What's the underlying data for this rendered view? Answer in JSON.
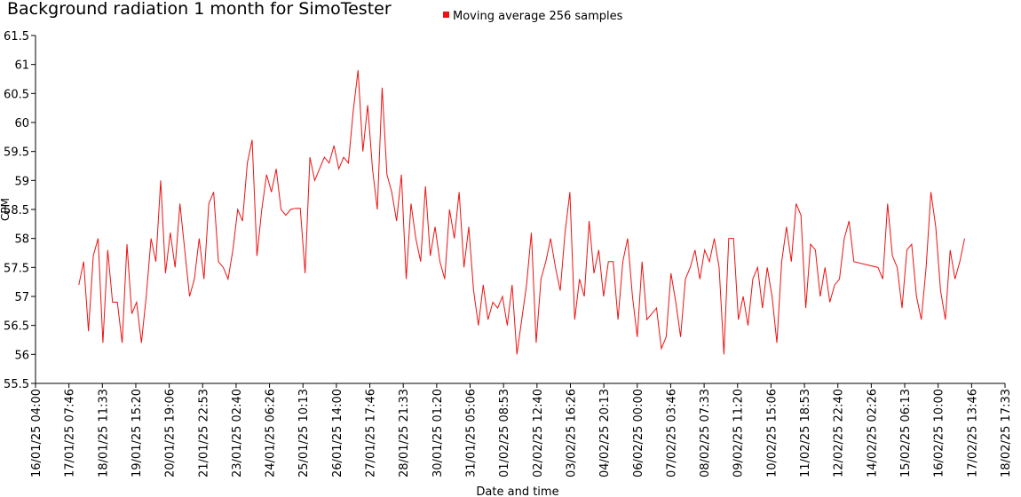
{
  "chart_data": {
    "type": "line",
    "title": "Background radiation 1 month for SimoTester",
    "xlabel": "Date and time",
    "ylabel": "CPM",
    "xlim": [
      0,
      805.56
    ],
    "ylim": [
      55.5,
      61.5
    ],
    "yticks": [
      55.5,
      56,
      56.5,
      57,
      57.5,
      58,
      58.5,
      59,
      59.5,
      60,
      60.5,
      61,
      61.5
    ],
    "xticks": [
      {
        "value": 0,
        "label": "16/01/25 04:00"
      },
      {
        "value": 27.78,
        "label": "17/01/25 07:46"
      },
      {
        "value": 55.56,
        "label": "18/01/25 11:33"
      },
      {
        "value": 83.33,
        "label": "19/01/25 15:20"
      },
      {
        "value": 111.11,
        "label": "20/01/25 19:06"
      },
      {
        "value": 138.89,
        "label": "21/01/25 22:53"
      },
      {
        "value": 166.67,
        "label": "23/01/25 02:40"
      },
      {
        "value": 194.44,
        "label": "24/01/25 06:26"
      },
      {
        "value": 222.22,
        "label": "25/01/25 10:13"
      },
      {
        "value": 250,
        "label": "26/01/25 14:00"
      },
      {
        "value": 277.78,
        "label": "27/01/25 17:46"
      },
      {
        "value": 305.56,
        "label": "28/01/25 21:33"
      },
      {
        "value": 333.33,
        "label": "30/01/25 01:20"
      },
      {
        "value": 361.11,
        "label": "31/01/25 05:06"
      },
      {
        "value": 388.89,
        "label": "01/02/25 08:53"
      },
      {
        "value": 416.67,
        "label": "02/02/25 12:40"
      },
      {
        "value": 444.44,
        "label": "03/02/25 16:26"
      },
      {
        "value": 472.22,
        "label": "04/02/25 20:13"
      },
      {
        "value": 500,
        "label": "06/02/25 00:00"
      },
      {
        "value": 527.78,
        "label": "07/02/25 03:46"
      },
      {
        "value": 555.56,
        "label": "08/02/25 07:33"
      },
      {
        "value": 583.33,
        "label": "09/02/25 11:20"
      },
      {
        "value": 611.11,
        "label": "10/02/25 15:06"
      },
      {
        "value": 638.89,
        "label": "11/02/25 18:53"
      },
      {
        "value": 666.67,
        "label": "12/02/25 22:40"
      },
      {
        "value": 694.44,
        "label": "14/02/25 02:26"
      },
      {
        "value": 722.22,
        "label": "15/02/25 06:13"
      },
      {
        "value": 750,
        "label": "16/02/25 10:00"
      },
      {
        "value": 777.78,
        "label": "17/02/25 13:46"
      },
      {
        "value": 805.56,
        "label": "18/02/25 17:33"
      }
    ],
    "x": [
      36,
      40,
      44,
      48,
      52,
      56,
      60,
      64,
      68,
      72,
      76,
      80,
      84,
      88,
      92,
      96,
      100,
      104,
      108,
      112,
      116,
      120,
      124,
      128,
      132,
      136,
      140,
      144,
      148,
      152,
      156,
      160,
      164,
      168,
      172,
      176,
      180,
      184,
      188,
      192,
      196,
      200,
      204,
      208,
      212,
      216,
      220,
      224,
      228,
      232,
      236,
      240,
      244,
      248,
      252,
      256,
      260,
      264,
      268,
      272,
      276,
      280,
      284,
      288,
      292,
      296,
      300,
      304,
      308,
      312,
      316,
      320,
      324,
      328,
      332,
      336,
      340,
      344,
      348,
      352,
      356,
      360,
      364,
      368,
      372,
      376,
      380,
      384,
      388,
      392,
      396,
      400,
      404,
      408,
      412,
      416,
      420,
      424,
      428,
      432,
      436,
      440,
      444,
      448,
      452,
      456,
      460,
      464,
      468,
      472,
      476,
      480,
      484,
      488,
      492,
      496,
      500,
      504,
      508,
      512,
      516,
      520,
      524,
      528,
      532,
      536,
      540,
      544,
      548,
      552,
      556,
      560,
      564,
      568,
      572,
      576,
      580,
      584,
      588,
      592,
      596,
      600,
      604,
      608,
      612,
      616,
      620,
      624,
      628,
      632,
      636,
      640,
      644,
      648,
      652,
      656,
      660,
      664,
      668,
      672,
      676,
      680,
      700,
      704,
      708,
      712,
      716,
      720,
      724,
      728,
      732,
      736,
      740,
      744,
      748,
      752,
      756,
      760,
      764,
      768,
      772
    ],
    "series": [
      {
        "name": "Moving average 256 samples",
        "color": "#ee1111",
        "values": [
          57.2,
          57.6,
          56.4,
          57.7,
          58.0,
          56.2,
          57.8,
          56.9,
          56.9,
          56.2,
          57.9,
          56.7,
          56.9,
          56.2,
          57.0,
          58.0,
          57.6,
          59.0,
          57.4,
          58.1,
          57.5,
          58.6,
          57.8,
          57.0,
          57.3,
          58.0,
          57.3,
          58.6,
          58.8,
          57.6,
          57.5,
          57.3,
          57.8,
          58.5,
          58.3,
          59.3,
          59.7,
          57.7,
          58.5,
          59.1,
          58.8,
          59.2,
          58.5,
          58.4,
          58.5,
          58.52,
          58.52,
          57.4,
          59.4,
          59.0,
          59.2,
          59.4,
          59.3,
          59.6,
          59.2,
          59.4,
          59.3,
          60.2,
          60.9,
          59.5,
          60.3,
          59.2,
          58.5,
          60.6,
          59.1,
          58.8,
          58.3,
          59.1,
          57.3,
          58.6,
          58.0,
          57.6,
          58.9,
          57.7,
          58.2,
          57.6,
          57.3,
          58.5,
          58.0,
          58.8,
          57.5,
          58.2,
          57.1,
          56.5,
          57.2,
          56.6,
          56.9,
          56.8,
          57.0,
          56.5,
          57.2,
          56.0,
          56.6,
          57.2,
          58.1,
          56.2,
          57.3,
          57.6,
          58.0,
          57.5,
          57.1,
          58.1,
          58.8,
          56.6,
          57.3,
          57.0,
          58.3,
          57.4,
          57.8,
          57.0,
          57.6,
          57.6,
          56.6,
          57.6,
          58.0,
          57.0,
          56.3,
          57.6,
          56.6,
          56.7,
          56.8,
          56.1,
          56.3,
          57.4,
          56.9,
          56.3,
          57.3,
          57.5,
          57.8,
          57.3,
          57.8,
          57.6,
          58.0,
          57.5,
          56.0,
          58.0,
          58.0,
          56.6,
          57.0,
          56.5,
          57.3,
          57.5,
          56.8,
          57.5,
          57.0,
          56.2,
          57.6,
          58.2,
          57.6,
          58.6,
          58.4,
          56.8,
          57.9,
          57.8,
          57.0,
          57.5,
          56.9,
          57.2,
          57.3,
          58.0,
          58.3,
          57.6,
          57.5,
          57.3,
          58.6,
          57.7,
          57.5,
          56.8,
          57.8,
          57.9,
          57.0,
          56.6,
          57.5,
          58.8,
          58.2,
          57.1,
          56.6,
          57.8,
          57.3,
          57.6,
          58.0
        ]
      }
    ]
  }
}
